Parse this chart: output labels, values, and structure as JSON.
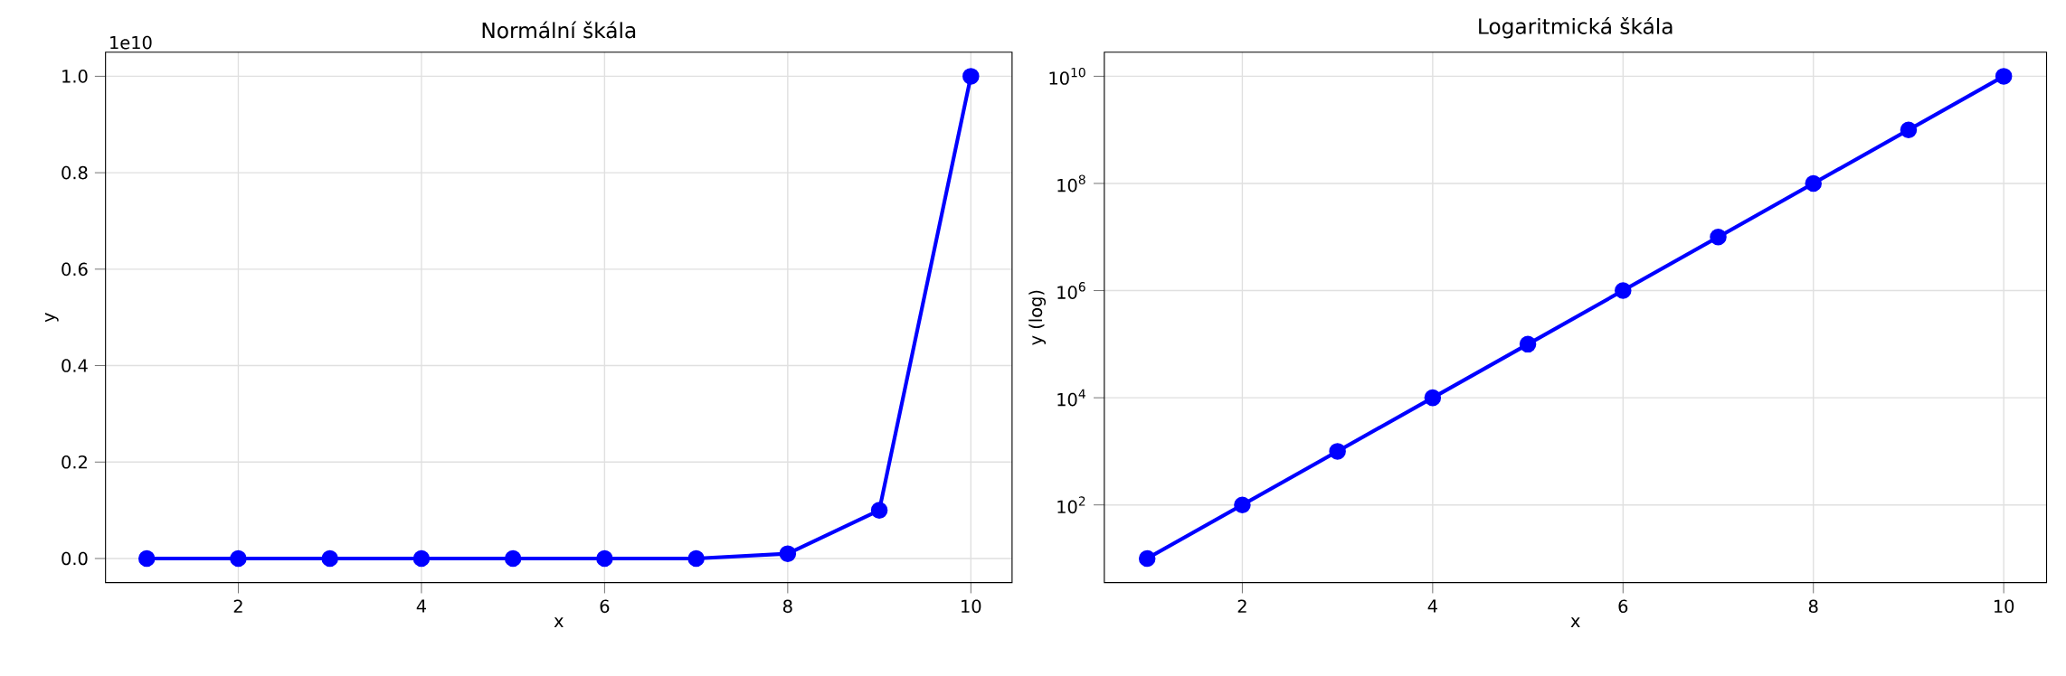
{
  "chart_data": [
    {
      "type": "line",
      "title": "Normální škála",
      "xlabel": "x",
      "ylabel": "y",
      "x": [
        1,
        2,
        3,
        4,
        5,
        6,
        7,
        8,
        9,
        10
      ],
      "values": [
        0,
        0,
        0,
        0,
        0,
        0,
        0,
        0.01,
        0.1,
        1
      ],
      "color": "#0000ff",
      "marker": "circle",
      "grid": true,
      "xlim": [
        0.55,
        10.45
      ],
      "ylim": [
        -0.05,
        1.05
      ],
      "xticks": [
        2,
        4,
        6,
        8,
        10
      ],
      "yticks": [
        {
          "value": 0,
          "label": "0.0"
        },
        0.2,
        0.4,
        0.6,
        0.8,
        {
          "value": 1,
          "label": "1.0"
        }
      ],
      "annotations": [
        "1e10"
      ]
    },
    {
      "type": "line",
      "title": "Logaritmická škála",
      "xlabel": "x",
      "ylabel": "y (log)",
      "x": [
        1,
        2,
        3,
        4,
        5,
        6,
        7,
        8,
        9,
        10
      ],
      "values": [
        10,
        100,
        1000,
        10000,
        100000,
        1000000,
        10000000,
        100000000,
        1000000000,
        10000000000
      ],
      "color": "#0000ff",
      "marker": "circle",
      "grid": true,
      "log": true,
      "xlim": [
        0.55,
        10.45
      ],
      "ylim": [
        3.548,
        28180000000
      ],
      "xticks": [
        2,
        4,
        6,
        8,
        10
      ],
      "yticks": [
        {
          "value": 100,
          "label": "10$^{2}$"
        },
        {
          "value": 10000,
          "label": "10$^{4}$"
        },
        {
          "value": 1000000,
          "label": "10$^{6}$"
        },
        {
          "value": 100000000,
          "label": "10$^{8}$"
        },
        {
          "value": 10000000000,
          "label": "10$^{10}$"
        }
      ]
    }
  ]
}
